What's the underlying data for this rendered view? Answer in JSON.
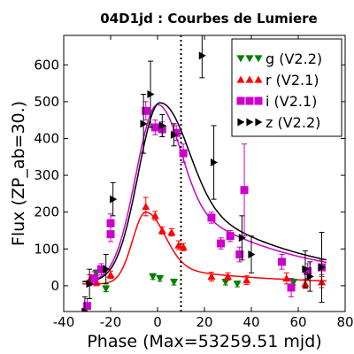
{
  "chart_data": {
    "type": "scatter",
    "title": "04D1jd : Courbes de Lumiere",
    "xlabel": "Phase (Max=53259.51 mjd)",
    "ylabel": "Flux (ZP_ab=30.)",
    "xlim": [
      -40,
      80
    ],
    "ylim": [
      -70,
      680
    ],
    "xticks": [
      -40,
      -20,
      0,
      20,
      40,
      60,
      80
    ],
    "yticks": [
      0,
      100,
      200,
      300,
      400,
      500,
      600
    ],
    "vline_x": 10,
    "legend_position": "top-right",
    "series": [
      {
        "name": "g (V2.2)",
        "color": "#008000",
        "marker": "triangle-down",
        "points": [
          {
            "x": -26,
            "y": 35,
            "err": 8
          },
          {
            "x": -22,
            "y": -8,
            "err": 8
          },
          {
            "x": -2,
            "y": 25,
            "err": 8
          },
          {
            "x": 1,
            "y": 20,
            "err": 8
          },
          {
            "x": 7,
            "y": 10,
            "err": 8
          },
          {
            "x": 29,
            "y": 10,
            "err": 8
          },
          {
            "x": 34,
            "y": 5,
            "err": 8
          },
          {
            "x": 58,
            "y": 10,
            "err": 8
          }
        ]
      },
      {
        "name": "r (V2.1)",
        "color": "#ff0000",
        "marker": "triangle-up",
        "points": [
          {
            "x": -29,
            "y": 15,
            "err": 15
          },
          {
            "x": -26,
            "y": 10,
            "err": 10
          },
          {
            "x": -20,
            "y": 30,
            "err": 10
          },
          {
            "x": -5,
            "y": 215,
            "err": 25
          },
          {
            "x": -1,
            "y": 190,
            "err": 12
          },
          {
            "x": 2,
            "y": 150,
            "err": 10
          },
          {
            "x": 6,
            "y": 145,
            "err": 10
          },
          {
            "x": 9,
            "y": 110,
            "err": 12
          },
          {
            "x": 11,
            "y": 105,
            "err": 10
          },
          {
            "x": 23,
            "y": 25,
            "err": 12
          },
          {
            "x": 30,
            "y": 25,
            "err": 10
          },
          {
            "x": 38,
            "y": 15,
            "err": 12
          },
          {
            "x": 55,
            "y": 20,
            "err": 15
          },
          {
            "x": 63,
            "y": 5,
            "err": 12
          },
          {
            "x": 70,
            "y": 10,
            "err": 15
          }
        ]
      },
      {
        "name": "i (V2.1)",
        "color": "#cc00cc",
        "marker": "square",
        "points": [
          {
            "x": -30,
            "y": -55,
            "err": 20
          },
          {
            "x": -27,
            "y": 20,
            "err": 18
          },
          {
            "x": -24,
            "y": 45,
            "err": 15
          },
          {
            "x": -20,
            "y": 170,
            "err": 25
          },
          {
            "x": -20,
            "y": 140,
            "err": 20
          },
          {
            "x": -5,
            "y": 475,
            "err": 25
          },
          {
            "x": -1,
            "y": 430,
            "err": 20
          },
          {
            "x": 2,
            "y": 425,
            "err": 20
          },
          {
            "x": 8,
            "y": 415,
            "err": 20
          },
          {
            "x": 11,
            "y": 360,
            "err": 25
          },
          {
            "x": 23,
            "y": 185,
            "err": 15
          },
          {
            "x": 27,
            "y": 115,
            "err": 15
          },
          {
            "x": 31,
            "y": 135,
            "err": 15
          },
          {
            "x": 35,
            "y": 85,
            "err": 20
          },
          {
            "x": 37,
            "y": 260,
            "err": 125
          },
          {
            "x": 53,
            "y": 65,
            "err": 20
          },
          {
            "x": 57,
            "y": -5,
            "err": 25
          },
          {
            "x": 64,
            "y": 40,
            "err": 20
          },
          {
            "x": 70,
            "y": 50,
            "err": 20
          }
        ]
      },
      {
        "name": "z (V2.2)",
        "color": "#000000",
        "marker": "triangle-right",
        "points": [
          {
            "x": -31,
            "y": -70,
            "err": 40
          },
          {
            "x": -29,
            "y": 5,
            "err": 40
          },
          {
            "x": -22,
            "y": 45,
            "err": 40
          },
          {
            "x": -19,
            "y": 235,
            "err": 45
          },
          {
            "x": -6,
            "y": 440,
            "err": 80
          },
          {
            "x": -3,
            "y": 520,
            "err": 90
          },
          {
            "x": 2,
            "y": 435,
            "err": 30
          },
          {
            "x": 7,
            "y": 410,
            "err": 30
          },
          {
            "x": 19,
            "y": 625,
            "err": 60
          },
          {
            "x": 24,
            "y": 335,
            "err": 100
          },
          {
            "x": 36,
            "y": 130,
            "err": 60
          },
          {
            "x": 40,
            "y": 85,
            "err": 50
          },
          {
            "x": 63,
            "y": 45,
            "err": 50
          },
          {
            "x": 65,
            "y": 25,
            "err": 40
          },
          {
            "x": 70,
            "y": 50,
            "err": 95
          }
        ]
      }
    ],
    "fit_curves": [
      {
        "band": "i",
        "color": "#cc00cc",
        "peak_x": 0,
        "peak_y": 492,
        "baseline": 10,
        "rise": 13,
        "fall": 12.5,
        "tail": 0.55,
        "tail_tau": 45
      },
      {
        "band": "z",
        "color": "#000000",
        "peak_x": 1,
        "peak_y": 497,
        "baseline": 10,
        "rise": 13,
        "fall": 15,
        "tail": 0.6,
        "tail_tau": 45
      },
      {
        "band": "r",
        "color": "#ff0000",
        "peak_x": -5,
        "peak_y": 200,
        "baseline": 5,
        "rise": 8,
        "fall": 11,
        "tail": 0.28,
        "tail_tau": 40
      }
    ]
  }
}
